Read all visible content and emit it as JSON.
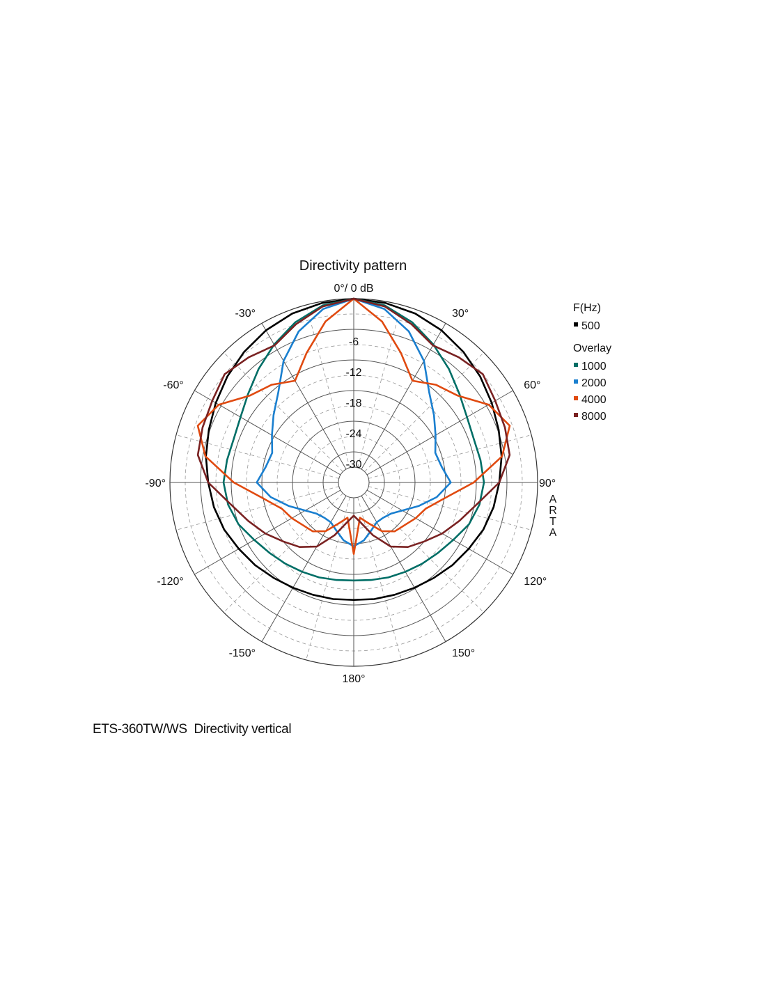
{
  "caption": "ETS-360TW/WS  Directivity vertical",
  "chart_data": {
    "type": "polar-line",
    "title": "Directivity pattern",
    "top_label": "0°/ 0 dB",
    "right_vertical_label": "ARTA",
    "rlim": [
      -36,
      0
    ],
    "radial_ticks": [
      -6,
      -12,
      -18,
      -24,
      -30
    ],
    "radial_tick_labels": [
      "-6",
      "-12",
      "-18",
      "-24",
      "-30"
    ],
    "angle_labels": [
      {
        "angle": 0,
        "text": "0°/ 0 dB"
      },
      {
        "angle": 30,
        "text": "30°"
      },
      {
        "angle": 60,
        "text": "60°"
      },
      {
        "angle": 90,
        "text": "90°"
      },
      {
        "angle": 120,
        "text": "120°"
      },
      {
        "angle": 150,
        "text": "150°"
      },
      {
        "angle": 180,
        "text": "180°"
      },
      {
        "angle": -150,
        "text": "-150°"
      },
      {
        "angle": -120,
        "text": "-120°"
      },
      {
        "angle": -90,
        "text": "-90°"
      },
      {
        "angle": -60,
        "text": "-60°"
      },
      {
        "angle": -30,
        "text": "-30°"
      }
    ],
    "grid": true,
    "legend": {
      "position": "right",
      "main_title": "F(Hz)",
      "overlay_title": "Overlay"
    },
    "angles": [
      0,
      10,
      20,
      30,
      40,
      50,
      60,
      70,
      80,
      90,
      100,
      110,
      120,
      130,
      140,
      150,
      160,
      170,
      180
    ],
    "series": [
      {
        "name": "500",
        "role": "main",
        "color": "#000000",
        "values": [
          0,
          -0.3,
          -0.8,
          -1.6,
          -2.6,
          -3.7,
          -4.8,
          -5.8,
          -6.6,
          -7.5,
          -8.2,
          -9,
          -10,
          -10.8,
          -11.6,
          -12.2,
          -12.6,
          -12.8,
          -13
        ]
      },
      {
        "name": "1000",
        "role": "overlay",
        "color": "#006e66",
        "values": [
          0,
          -0.8,
          -2.6,
          -4.8,
          -7,
          -9,
          -10.4,
          -11,
          -10.8,
          -10.5,
          -11,
          -12,
          -13.5,
          -14.5,
          -15.2,
          -15.8,
          -16.2,
          -16.6,
          -16.8
        ]
      },
      {
        "name": "2000",
        "role": "overlay",
        "color": "#1a7fcf",
        "values": [
          0,
          -1.5,
          -4.5,
          -8.5,
          -13,
          -15.5,
          -17.5,
          -19,
          -18.5,
          -17,
          -19.5,
          -22.5,
          -25,
          -26.5,
          -27,
          -27,
          -26,
          -24.5,
          -23.5
        ]
      },
      {
        "name": "4000",
        "role": "overlay",
        "color": "#e04a10",
        "values": [
          0,
          -4,
          -9,
          -13,
          -11,
          -9.5,
          -5.5,
          -3.5,
          -6.5,
          -12.5,
          -18,
          -21,
          -22,
          -23,
          -23.5,
          -25,
          -27.5,
          -29,
          -22
        ]
      },
      {
        "name": "8000",
        "role": "overlay",
        "color": "#7a2222",
        "values": [
          0,
          -1,
          -3,
          -5,
          -4,
          -3,
          -4,
          -4.5,
          -5,
          -7.5,
          -11.5,
          -14,
          -16,
          -18,
          -19.5,
          -21.5,
          -25,
          -28,
          -29.5
        ]
      }
    ]
  }
}
